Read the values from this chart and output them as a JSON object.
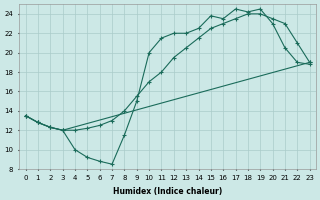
{
  "xlabel": "Humidex (Indice chaleur)",
  "bg_color": "#cce8e6",
  "grid_color": "#aaccca",
  "line_color": "#1a6b5a",
  "line1_x": [
    0,
    1,
    2,
    3,
    23
  ],
  "line1_y": [
    13.5,
    12.8,
    12.3,
    12.0,
    19.0
  ],
  "line2_x": [
    0,
    1,
    2,
    3,
    4,
    5,
    6,
    7,
    8,
    9,
    10,
    11,
    12,
    13,
    14,
    15,
    16,
    17,
    18,
    19,
    20,
    21,
    22,
    23
  ],
  "line2_y": [
    13.5,
    12.8,
    12.3,
    12.0,
    12.0,
    12.2,
    12.5,
    13.0,
    14.0,
    15.5,
    17.0,
    18.0,
    19.5,
    20.5,
    21.5,
    22.5,
    23.0,
    23.5,
    24.0,
    24.0,
    23.5,
    23.0,
    21.0,
    19.0
  ],
  "line3_x": [
    0,
    1,
    2,
    3,
    4,
    5,
    6,
    7,
    8,
    9,
    10,
    11,
    12,
    13,
    14,
    15,
    16,
    17,
    18,
    19,
    20,
    21,
    22,
    23
  ],
  "line3_y": [
    13.5,
    12.8,
    12.3,
    12.0,
    10.0,
    9.2,
    8.8,
    8.5,
    11.5,
    15.0,
    20.0,
    21.5,
    22.0,
    22.0,
    22.5,
    23.8,
    23.5,
    24.5,
    24.2,
    24.5,
    23.0,
    20.5,
    19.0,
    18.8
  ],
  "ylim": [
    8,
    25
  ],
  "xlim_min": -0.5,
  "xlim_max": 23.5,
  "yticks": [
    8,
    10,
    12,
    14,
    16,
    18,
    20,
    22,
    24
  ],
  "xticks": [
    0,
    1,
    2,
    3,
    4,
    5,
    6,
    7,
    8,
    9,
    10,
    11,
    12,
    13,
    14,
    15,
    16,
    17,
    18,
    19,
    20,
    21,
    22,
    23
  ]
}
